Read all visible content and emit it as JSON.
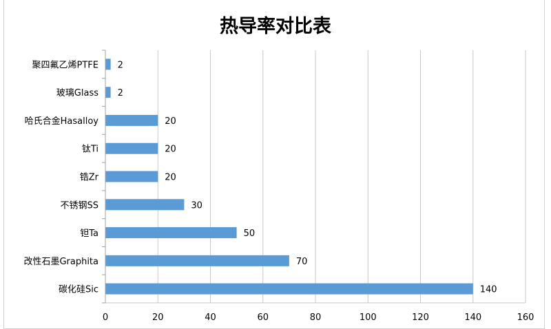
{
  "chart_data": {
    "type": "bar",
    "orientation": "horizontal",
    "title": "热导率对比表",
    "categories": [
      "聚四氟乙烯PTFE",
      "玻璃Glass",
      "哈氏合金Hasalloy",
      "钛Ti",
      "锆Zr",
      "不锈钢SS",
      "钽Ta",
      "改性石墨Graphita",
      "碳化硅Sic"
    ],
    "values": [
      2,
      2,
      20,
      20,
      20,
      30,
      50,
      70,
      140
    ],
    "xlim": [
      0,
      160
    ],
    "xticks": [
      "0",
      "20",
      "40",
      "60",
      "80",
      "100",
      "120",
      "140",
      "160"
    ],
    "grid": true,
    "data_labels": true,
    "bar_color": "#5b9bd5"
  }
}
